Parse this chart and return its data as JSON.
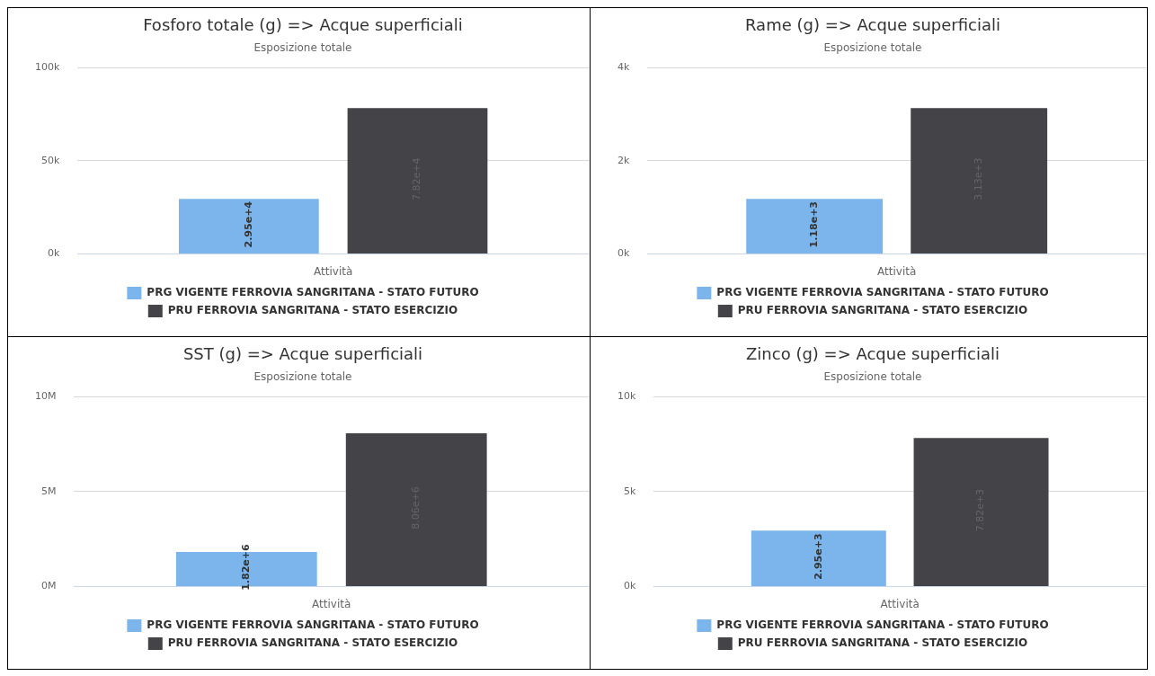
{
  "chart_data": [
    {
      "type": "bar",
      "title": "Fosforo totale (g) => Acque superficiali",
      "subtitle": "Esposizione totale",
      "categories": [
        "Attività"
      ],
      "series": [
        {
          "name": "PRG VIGENTE FERROVIA SANGRITANA - STATO FUTURO",
          "color": "#7cb5ec",
          "values": [
            29500
          ],
          "value_labels": [
            "2.95e+4"
          ]
        },
        {
          "name": "PRU FERROVIA SANGRITANA - STATO ESERCIZIO",
          "color": "#434348",
          "values": [
            78200
          ],
          "value_labels": [
            "7.82e+4"
          ]
        }
      ],
      "ylim": [
        0,
        100000
      ],
      "yticks": [
        {
          "value": 0,
          "label": "0k"
        },
        {
          "value": 50000,
          "label": "50k"
        },
        {
          "value": 100000,
          "label": "100k"
        }
      ],
      "grid": "y",
      "legend": "bottom"
    },
    {
      "type": "bar",
      "title": "Rame (g) => Acque superficiali",
      "subtitle": "Esposizione totale",
      "categories": [
        "Attività"
      ],
      "series": [
        {
          "name": "PRG VIGENTE FERROVIA SANGRITANA - STATO FUTURO",
          "color": "#7cb5ec",
          "values": [
            1180
          ],
          "value_labels": [
            "1.18e+3"
          ]
        },
        {
          "name": "PRU FERROVIA SANGRITANA - STATO ESERCIZIO",
          "color": "#434348",
          "values": [
            3130
          ],
          "value_labels": [
            "3.13e+3"
          ]
        }
      ],
      "ylim": [
        0,
        4000
      ],
      "yticks": [
        {
          "value": 0,
          "label": "0k"
        },
        {
          "value": 2000,
          "label": "2k"
        },
        {
          "value": 4000,
          "label": "4k"
        }
      ],
      "grid": "y",
      "legend": "bottom"
    },
    {
      "type": "bar",
      "title": "SST (g) => Acque superficiali",
      "subtitle": "Esposizione totale",
      "categories": [
        "Attività"
      ],
      "series": [
        {
          "name": "PRG VIGENTE FERROVIA SANGRITANA - STATO FUTURO",
          "color": "#7cb5ec",
          "values": [
            1820000
          ],
          "value_labels": [
            "1.82e+6"
          ]
        },
        {
          "name": "PRU FERROVIA SANGRITANA - STATO ESERCIZIO",
          "color": "#434348",
          "values": [
            8060000
          ],
          "value_labels": [
            "8.06e+6"
          ]
        }
      ],
      "ylim": [
        0,
        10000000
      ],
      "yticks": [
        {
          "value": 0,
          "label": "0M"
        },
        {
          "value": 5000000,
          "label": "5M"
        },
        {
          "value": 10000000,
          "label": "10M"
        }
      ],
      "grid": "y",
      "legend": "bottom"
    },
    {
      "type": "bar",
      "title": "Zinco (g) => Acque superficiali",
      "subtitle": "Esposizione totale",
      "categories": [
        "Attività"
      ],
      "series": [
        {
          "name": "PRG VIGENTE FERROVIA SANGRITANA - STATO FUTURO",
          "color": "#7cb5ec",
          "values": [
            2950
          ],
          "value_labels": [
            "2.95e+3"
          ]
        },
        {
          "name": "PRU FERROVIA SANGRITANA - STATO ESERCIZIO",
          "color": "#434348",
          "values": [
            7820
          ],
          "value_labels": [
            "7.82e+3"
          ]
        }
      ],
      "ylim": [
        0,
        10000
      ],
      "yticks": [
        {
          "value": 0,
          "label": "0k"
        },
        {
          "value": 5000,
          "label": "5k"
        },
        {
          "value": 10000,
          "label": "10k"
        }
      ],
      "grid": "y",
      "legend": "bottom"
    }
  ]
}
